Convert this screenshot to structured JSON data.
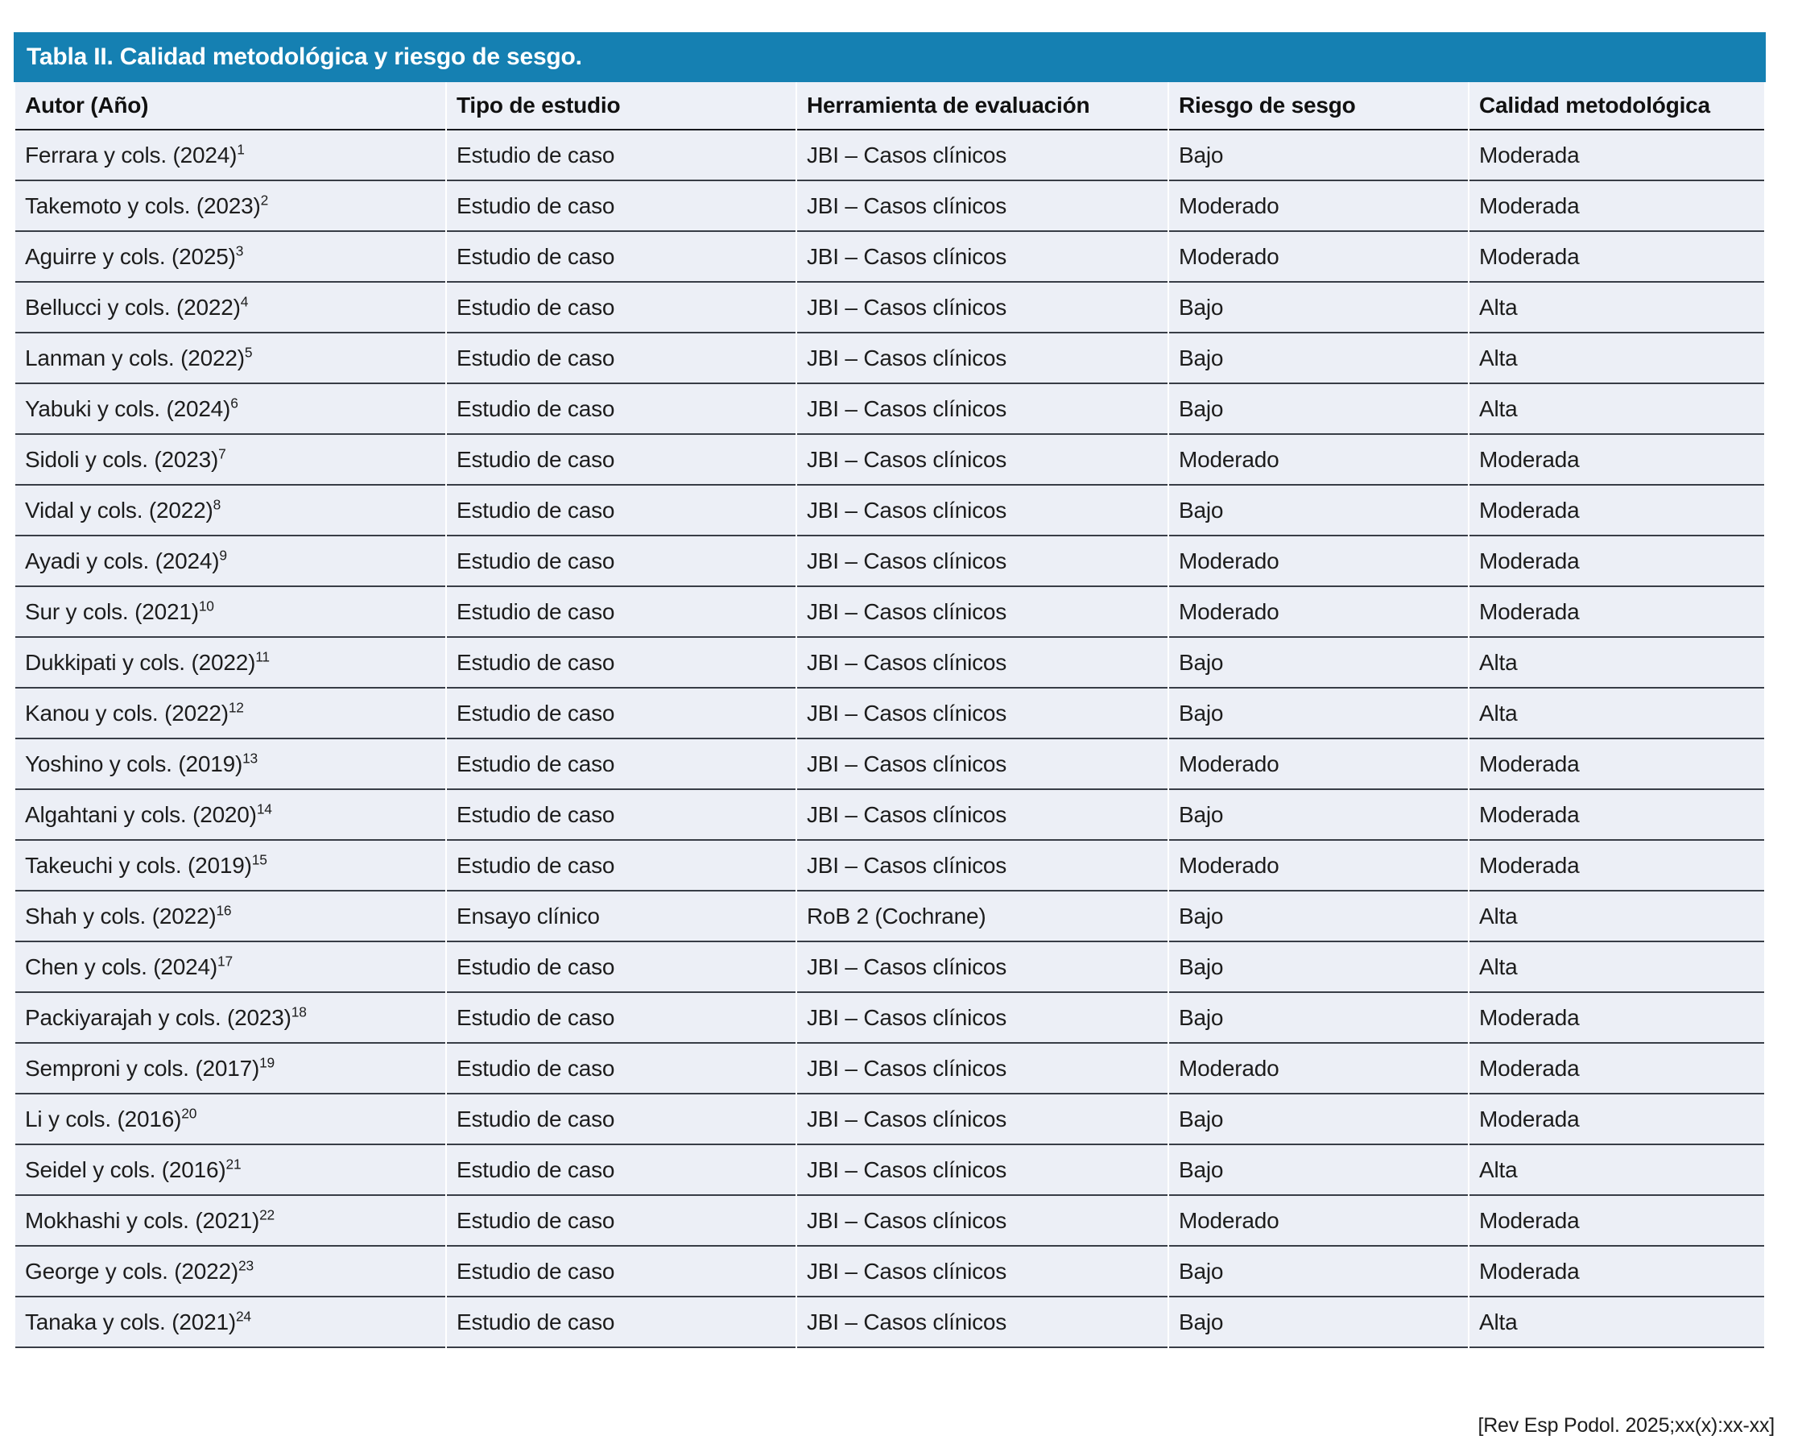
{
  "colors": {
    "header_bar": "#1580B2",
    "header_row_bg": "#EDF0F7",
    "row_bg": "#ECEFF6",
    "row_border": "#383D46",
    "header_border": "#16181D"
  },
  "table": {
    "title": "Tabla II. Calidad metodológica y riesgo de sesgo.",
    "columns": [
      "Autor (Año)",
      "Tipo de estudio",
      "Herramienta de evaluación",
      "Riesgo de sesgo",
      "Calidad metodológica"
    ],
    "rows": [
      {
        "autor": "Ferrara y cols. (2024)",
        "ref": "1",
        "tipo": "Estudio de caso",
        "herramienta": "JBI – Casos clínicos",
        "riesgo": "Bajo",
        "calidad": "Moderada"
      },
      {
        "autor": "Takemoto y cols. (2023)",
        "ref": "2",
        "tipo": "Estudio de caso",
        "herramienta": "JBI – Casos clínicos",
        "riesgo": "Moderado",
        "calidad": "Moderada"
      },
      {
        "autor": "Aguirre y cols. (2025)",
        "ref": "3",
        "tipo": "Estudio de caso",
        "herramienta": "JBI – Casos clínicos",
        "riesgo": "Moderado",
        "calidad": "Moderada"
      },
      {
        "autor": "Bellucci y cols. (2022)",
        "ref": "4",
        "tipo": "Estudio de caso",
        "herramienta": "JBI – Casos clínicos",
        "riesgo": "Bajo",
        "calidad": "Alta"
      },
      {
        "autor": "Lanman y cols. (2022)",
        "ref": "5",
        "tipo": "Estudio de caso",
        "herramienta": "JBI – Casos clínicos",
        "riesgo": "Bajo",
        "calidad": "Alta"
      },
      {
        "autor": "Yabuki y cols. (2024)",
        "ref": "6",
        "tipo": "Estudio de caso",
        "herramienta": "JBI – Casos clínicos",
        "riesgo": "Bajo",
        "calidad": "Alta"
      },
      {
        "autor": "Sidoli y cols. (2023)",
        "ref": "7",
        "tipo": "Estudio de caso",
        "herramienta": "JBI – Casos clínicos",
        "riesgo": "Moderado",
        "calidad": "Moderada"
      },
      {
        "autor": "Vidal y cols. (2022)",
        "ref": "8",
        "tipo": "Estudio de caso",
        "herramienta": "JBI – Casos clínicos",
        "riesgo": "Bajo",
        "calidad": "Moderada"
      },
      {
        "autor": "Ayadi y cols. (2024)",
        "ref": "9",
        "tipo": "Estudio de caso",
        "herramienta": "JBI – Casos clínicos",
        "riesgo": "Moderado",
        "calidad": "Moderada"
      },
      {
        "autor": "Sur y cols. (2021)",
        "ref": "10",
        "tipo": "Estudio de caso",
        "herramienta": "JBI – Casos clínicos",
        "riesgo": "Moderado",
        "calidad": "Moderada"
      },
      {
        "autor": "Dukkipati y cols. (2022)",
        "ref": "11",
        "tipo": "Estudio de caso",
        "herramienta": "JBI – Casos clínicos",
        "riesgo": "Bajo",
        "calidad": "Alta"
      },
      {
        "autor": "Kanou y cols. (2022)",
        "ref": "12",
        "tipo": "Estudio de caso",
        "herramienta": "JBI – Casos clínicos",
        "riesgo": "Bajo",
        "calidad": "Alta"
      },
      {
        "autor": "Yoshino y cols. (2019)",
        "ref": "13",
        "tipo": "Estudio de caso",
        "herramienta": "JBI – Casos clínicos",
        "riesgo": "Moderado",
        "calidad": "Moderada"
      },
      {
        "autor": "Algahtani y cols. (2020)",
        "ref": "14",
        "tipo": "Estudio de caso",
        "herramienta": "JBI – Casos clínicos",
        "riesgo": "Bajo",
        "calidad": "Moderada"
      },
      {
        "autor": "Takeuchi y cols. (2019)",
        "ref": "15",
        "tipo": "Estudio de caso",
        "herramienta": "JBI – Casos clínicos",
        "riesgo": "Moderado",
        "calidad": "Moderada"
      },
      {
        "autor": "Shah y cols. (2022)",
        "ref": "16",
        "tipo": "Ensayo clínico",
        "herramienta": "RoB 2 (Cochrane)",
        "riesgo": "Bajo",
        "calidad": "Alta"
      },
      {
        "autor": "Chen y cols. (2024)",
        "ref": "17",
        "tipo": "Estudio de caso",
        "herramienta": "JBI – Casos clínicos",
        "riesgo": "Bajo",
        "calidad": "Alta"
      },
      {
        "autor": "Packiyarajah y cols. (2023)",
        "ref": "18",
        "tipo": "Estudio de caso",
        "herramienta": "JBI – Casos clínicos",
        "riesgo": "Bajo",
        "calidad": "Moderada"
      },
      {
        "autor": "Semproni y cols. (2017)",
        "ref": "19",
        "tipo": "Estudio de caso",
        "herramienta": "JBI – Casos clínicos",
        "riesgo": "Moderado",
        "calidad": "Moderada"
      },
      {
        "autor": "Li y cols. (2016)",
        "ref": "20",
        "tipo": "Estudio de caso",
        "herramienta": "JBI – Casos clínicos",
        "riesgo": "Bajo",
        "calidad": "Moderada"
      },
      {
        "autor": "Seidel y cols. (2016)",
        "ref": "21",
        "tipo": "Estudio de caso",
        "herramienta": "JBI – Casos clínicos",
        "riesgo": "Bajo",
        "calidad": "Alta"
      },
      {
        "autor": "Mokhashi y cols. (2021)",
        "ref": "22",
        "tipo": "Estudio de caso",
        "herramienta": "JBI – Casos clínicos",
        "riesgo": "Moderado",
        "calidad": "Moderada"
      },
      {
        "autor": "George y cols. (2022)",
        "ref": "23",
        "tipo": "Estudio de caso",
        "herramienta": "JBI – Casos clínicos",
        "riesgo": "Bajo",
        "calidad": "Moderada"
      },
      {
        "autor": "Tanaka y cols. (2021)",
        "ref": "24",
        "tipo": "Estudio de caso",
        "herramienta": "JBI – Casos clínicos",
        "riesgo": "Bajo",
        "calidad": "Alta"
      }
    ]
  },
  "footer": {
    "citation": "[Rev Esp Podol. 2025;xx(x):xx-xx]"
  }
}
